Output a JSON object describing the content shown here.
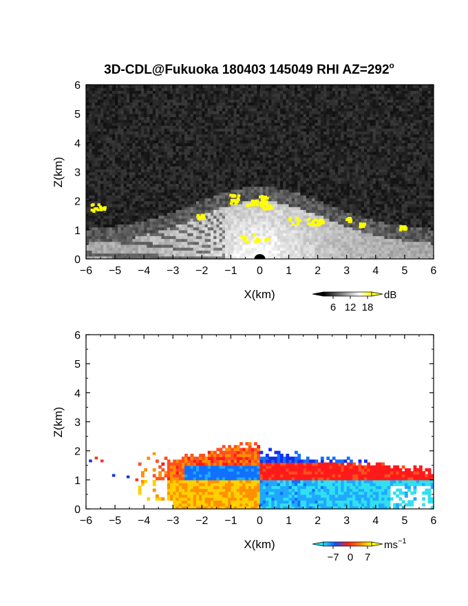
{
  "title": "3D-CDL@Fukuoka 180403 145049 RHI AZ=292",
  "title_sup": "o",
  "chart_data": [
    {
      "type": "heatmap",
      "quantity": "reflectivity",
      "xlabel": "X(km)",
      "ylabel": "Z(km)",
      "xlim": [
        -6,
        6
      ],
      "ylim": [
        0,
        6
      ],
      "xticks": [
        -6,
        -5,
        -4,
        -3,
        -2,
        -1,
        0,
        1,
        2,
        3,
        4,
        5,
        6
      ],
      "yticks": [
        0,
        1,
        2,
        3,
        4,
        5,
        6
      ],
      "colorbar": {
        "unit": "dB",
        "ticks": [
          6,
          12,
          18
        ],
        "colors": [
          "#000000",
          "#555555",
          "#aaaaaa",
          "#ffffff",
          "#ffff00"
        ]
      }
    },
    {
      "type": "heatmap",
      "quantity": "doppler velocity",
      "xlabel": "X(km)",
      "ylabel": "Z(km)",
      "xlim": [
        -6,
        6
      ],
      "ylim": [
        0,
        6
      ],
      "xticks": [
        -6,
        -5,
        -4,
        -3,
        -2,
        -1,
        0,
        1,
        2,
        3,
        4,
        5,
        6
      ],
      "yticks": [
        0,
        1,
        2,
        3,
        4,
        5,
        6
      ],
      "colorbar": {
        "unit": "ms",
        "unit_sup": "−1",
        "ticks": [
          "−7",
          "0",
          "7"
        ],
        "colors": [
          "#20e0f0",
          "#1050ff",
          "#ff2020",
          "#ff8000",
          "#ffff00"
        ]
      }
    }
  ]
}
